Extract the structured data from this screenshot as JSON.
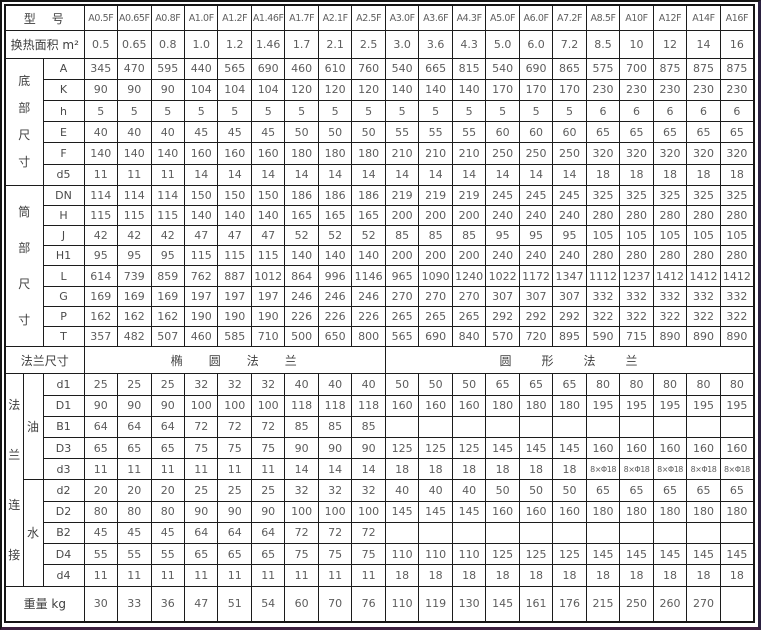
{
  "doc": {
    "type": "heat-exchanger specification table",
    "corner_label": "型号",
    "area_label": "换热面积 m²",
    "models": [
      "A0.5F",
      "A0.65F",
      "A0.8F",
      "A1.0F",
      "A1.2F",
      "A1.46F",
      "A1.7F",
      "A2.1F",
      "A2.5F",
      "A3.0F",
      "A3.6F",
      "A4.3F",
      "A5.0F",
      "A6.0F",
      "A7.2F",
      "A8.5F",
      "A10F",
      "A12F",
      "A14F",
      "A16F"
    ],
    "areas": [
      "0.5",
      "0.65",
      "0.8",
      "1.0",
      "1.2",
      "1.46",
      "1.7",
      "2.1",
      "2.5",
      "3.0",
      "3.6",
      "4.3",
      "5.0",
      "6.0",
      "7.2",
      "8.5",
      "10",
      "12",
      "14",
      "16"
    ],
    "sections": [
      {
        "label": "底部尺寸",
        "rows": [
          {
            "label": "A",
            "values": [
              "345",
              "470",
              "595",
              "440",
              "565",
              "690",
              "460",
              "610",
              "760",
              "540",
              "665",
              "815",
              "540",
              "690",
              "865",
              "575",
              "700",
              "875",
              "875",
              "875"
            ]
          },
          {
            "label": "K",
            "values": [
              "90",
              "90",
              "90",
              "104",
              "104",
              "104",
              "120",
              "120",
              "120",
              "140",
              "140",
              "140",
              "170",
              "170",
              "170",
              "230",
              "230",
              "230",
              "230",
              "230"
            ]
          },
          {
            "label": "h",
            "values": [
              "5",
              "5",
              "5",
              "5",
              "5",
              "5",
              "5",
              "5",
              "5",
              "5",
              "5",
              "5",
              "5",
              "5",
              "5",
              "6",
              "6",
              "6",
              "6",
              "6"
            ]
          },
          {
            "label": "E",
            "values": [
              "40",
              "40",
              "40",
              "45",
              "45",
              "45",
              "50",
              "50",
              "50",
              "55",
              "55",
              "55",
              "60",
              "60",
              "60",
              "65",
              "65",
              "65",
              "65",
              "65"
            ]
          },
          {
            "label": "F",
            "values": [
              "140",
              "140",
              "140",
              "160",
              "160",
              "160",
              "180",
              "180",
              "180",
              "210",
              "210",
              "210",
              "250",
              "250",
              "250",
              "320",
              "320",
              "320",
              "320",
              "320"
            ]
          },
          {
            "label": "d5",
            "values": [
              "11",
              "11",
              "11",
              "14",
              "14",
              "14",
              "14",
              "14",
              "14",
              "14",
              "14",
              "14",
              "14",
              "14",
              "14",
              "18",
              "18",
              "18",
              "18",
              "18"
            ]
          }
        ]
      },
      {
        "label": "筒部尺寸",
        "rows": [
          {
            "label": "DN",
            "values": [
              "114",
              "114",
              "114",
              "150",
              "150",
              "150",
              "186",
              "186",
              "186",
              "219",
              "219",
              "219",
              "245",
              "245",
              "245",
              "325",
              "325",
              "325",
              "325",
              "325"
            ]
          },
          {
            "label": "H",
            "values": [
              "115",
              "115",
              "115",
              "140",
              "140",
              "140",
              "165",
              "165",
              "165",
              "200",
              "200",
              "200",
              "240",
              "240",
              "240",
              "280",
              "280",
              "280",
              "280",
              "280"
            ]
          },
          {
            "label": "J",
            "values": [
              "42",
              "42",
              "42",
              "47",
              "47",
              "47",
              "52",
              "52",
              "52",
              "85",
              "85",
              "85",
              "95",
              "95",
              "95",
              "105",
              "105",
              "105",
              "105",
              "105"
            ]
          },
          {
            "label": "H1",
            "values": [
              "95",
              "95",
              "95",
              "115",
              "115",
              "115",
              "140",
              "140",
              "140",
              "200",
              "200",
              "200",
              "240",
              "240",
              "240",
              "280",
              "280",
              "280",
              "280",
              "280"
            ]
          },
          {
            "label": "L",
            "values": [
              "614",
              "739",
              "859",
              "762",
              "887",
              "1012",
              "864",
              "996",
              "1146",
              "965",
              "1090",
              "1240",
              "1022",
              "1172",
              "1347",
              "1112",
              "1237",
              "1412",
              "1412",
              "1412"
            ]
          },
          {
            "label": "G",
            "values": [
              "169",
              "169",
              "169",
              "197",
              "197",
              "197",
              "246",
              "246",
              "246",
              "270",
              "270",
              "270",
              "307",
              "307",
              "307",
              "332",
              "332",
              "332",
              "332",
              "332"
            ]
          },
          {
            "label": "P",
            "values": [
              "162",
              "162",
              "162",
              "190",
              "190",
              "190",
              "226",
              "226",
              "226",
              "265",
              "265",
              "265",
              "292",
              "292",
              "292",
              "322",
              "322",
              "322",
              "322",
              "322"
            ]
          },
          {
            "label": "T",
            "values": [
              "357",
              "482",
              "507",
              "460",
              "585",
              "710",
              "500",
              "650",
              "800",
              "565",
              "690",
              "840",
              "570",
              "720",
              "895",
              "590",
              "715",
              "890",
              "890",
              "890"
            ]
          }
        ]
      }
    ],
    "flange_header": {
      "label": "法兰尺寸",
      "oval_label": "椭圆法兰",
      "oval_span": 9,
      "round_label": "圆形法兰",
      "round_span": 11
    },
    "flange_connect": {
      "label": "法兰连接",
      "groups": [
        {
          "label": "油",
          "rows": [
            {
              "label": "d1",
              "values": [
                "25",
                "25",
                "25",
                "32",
                "32",
                "32",
                "40",
                "40",
                "40",
                "50",
                "50",
                "50",
                "65",
                "65",
                "65",
                "80",
                "80",
                "80",
                "80",
                "80"
              ]
            },
            {
              "label": "D1",
              "values": [
                "90",
                "90",
                "90",
                "100",
                "100",
                "100",
                "118",
                "118",
                "118",
                "160",
                "160",
                "160",
                "180",
                "180",
                "180",
                "195",
                "195",
                "195",
                "195",
                "195"
              ]
            },
            {
              "label": "B1",
              "values": [
                "64",
                "64",
                "64",
                "72",
                "72",
                "72",
                "85",
                "85",
                "85",
                "",
                "",
                "",
                "",
                "",
                "",
                "",
                "",
                "",
                "",
                ""
              ]
            },
            {
              "label": "D3",
              "values": [
                "65",
                "65",
                "65",
                "75",
                "75",
                "75",
                "90",
                "90",
                "90",
                "125",
                "125",
                "125",
                "145",
                "145",
                "145",
                "160",
                "160",
                "160",
                "160",
                "160"
              ]
            },
            {
              "label": "d3",
              "values": [
                "11",
                "11",
                "11",
                "11",
                "11",
                "11",
                "14",
                "14",
                "14",
                "18",
                "18",
                "18",
                "18",
                "18",
                "18",
                "8×Φ18",
                "8×Φ18",
                "8×Φ18",
                "8×Φ18",
                "8×Φ18"
              ]
            }
          ]
        },
        {
          "label": "水",
          "rows": [
            {
              "label": "d2",
              "values": [
                "20",
                "20",
                "20",
                "25",
                "25",
                "25",
                "32",
                "32",
                "32",
                "40",
                "40",
                "40",
                "50",
                "50",
                "50",
                "65",
                "65",
                "65",
                "65",
                "65"
              ]
            },
            {
              "label": "D2",
              "values": [
                "80",
                "80",
                "80",
                "90",
                "90",
                "90",
                "100",
                "100",
                "100",
                "145",
                "145",
                "145",
                "160",
                "160",
                "160",
                "180",
                "180",
                "180",
                "180",
                "180"
              ]
            },
            {
              "label": "B2",
              "values": [
                "45",
                "45",
                "45",
                "64",
                "64",
                "64",
                "72",
                "72",
                "72",
                "",
                "",
                "",
                "",
                "",
                "",
                "",
                "",
                "",
                "",
                ""
              ]
            },
            {
              "label": "D4",
              "values": [
                "55",
                "55",
                "55",
                "65",
                "65",
                "65",
                "75",
                "75",
                "75",
                "110",
                "110",
                "110",
                "125",
                "125",
                "125",
                "145",
                "145",
                "145",
                "145",
                "145"
              ]
            },
            {
              "label": "d4",
              "values": [
                "11",
                "11",
                "11",
                "11",
                "11",
                "11",
                "11",
                "11",
                "11",
                "18",
                "18",
                "18",
                "18",
                "18",
                "18",
                "18",
                "18",
                "18",
                "18",
                "18"
              ]
            }
          ]
        }
      ]
    },
    "weight": {
      "label": "重量 kg",
      "values": [
        "30",
        "33",
        "36",
        "47",
        "51",
        "54",
        "60",
        "70",
        "76",
        "110",
        "119",
        "130",
        "145",
        "161",
        "176",
        "215",
        "250",
        "260",
        "270",
        ""
      ]
    },
    "colors": {
      "border": "#1c1c1c",
      "value_text": "#5d5d5d",
      "label_text": "#3f3f3f",
      "frame_bottom": "#3c1f3e",
      "background": "#ffffff"
    }
  }
}
